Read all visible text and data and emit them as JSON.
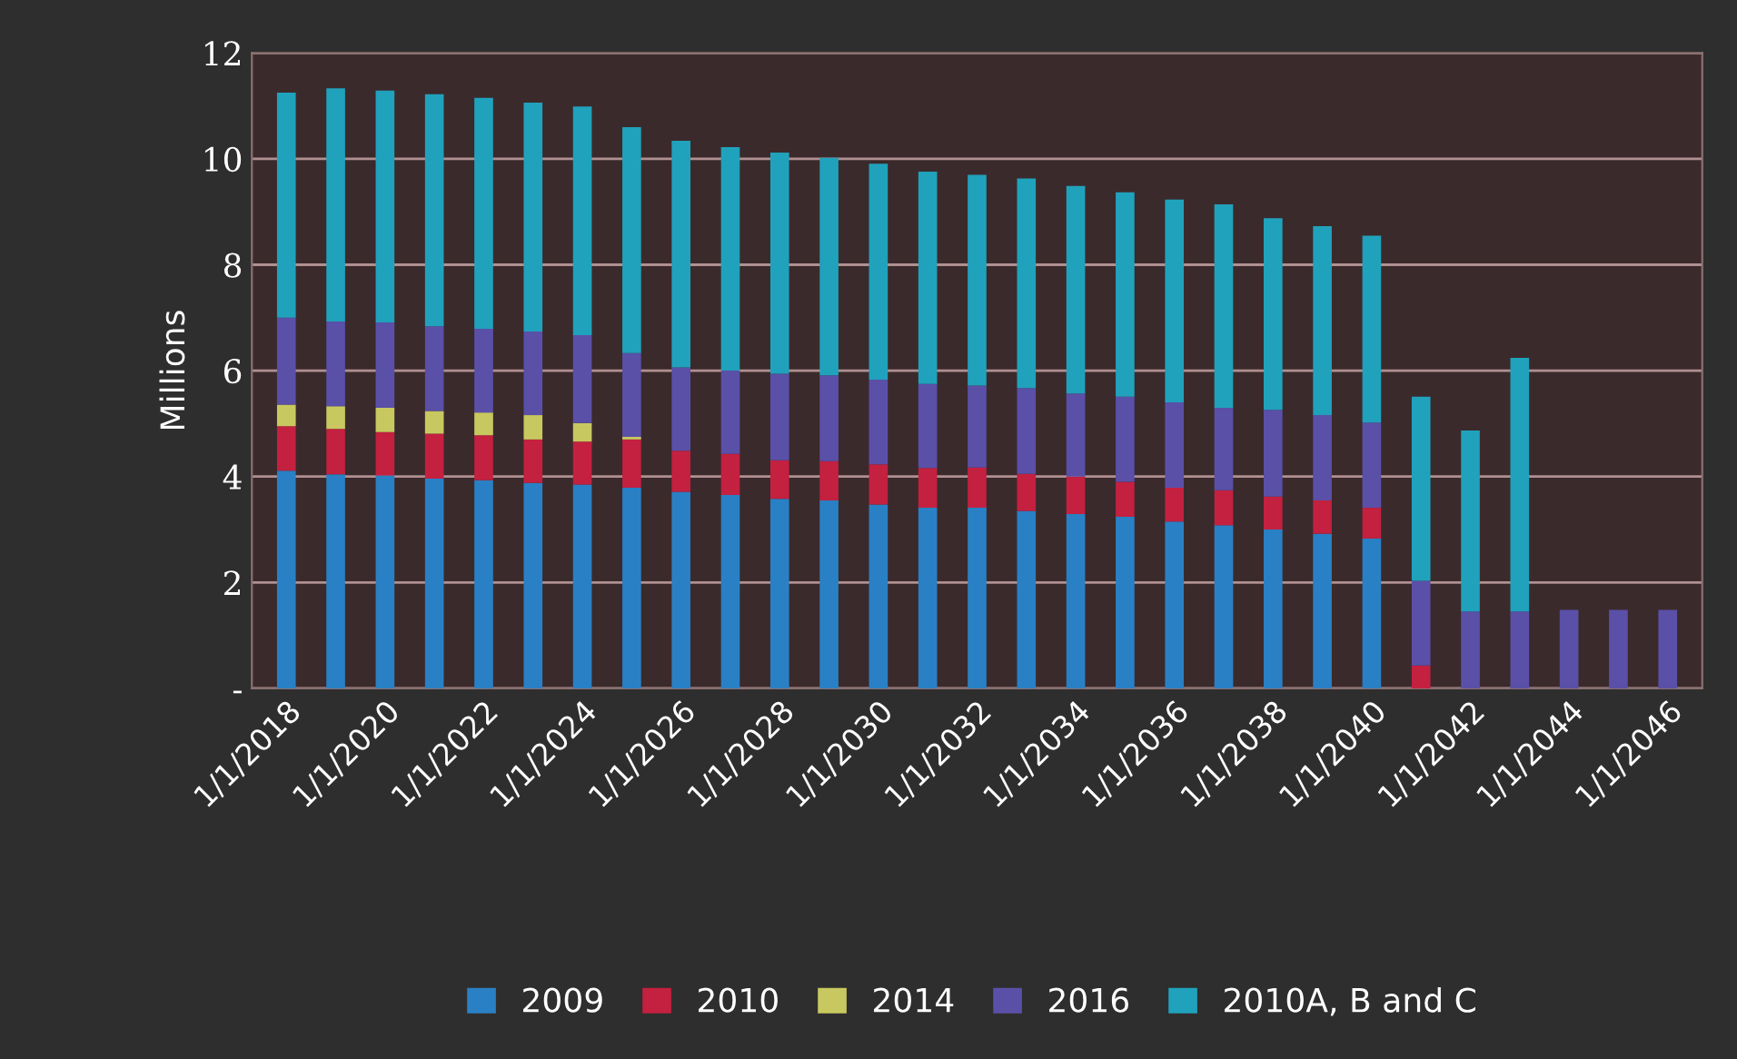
{
  "chart_data": {
    "type": "bar",
    "stacked": true,
    "ylabel": "Millions",
    "categories": [
      "1/1/2018",
      null,
      "1/1/2020",
      null,
      "1/1/2022",
      null,
      "1/1/2024",
      null,
      "1/1/2026",
      null,
      "1/1/2028",
      null,
      "1/1/2030",
      null,
      "1/1/2032",
      null,
      "1/1/2034",
      null,
      "1/1/2036",
      null,
      "1/1/2038",
      null,
      "1/1/2040",
      null,
      "1/1/2042",
      null,
      "1/1/2044",
      null,
      "1/1/2046"
    ],
    "series": [
      {
        "name": "2009",
        "color": "#2a80c4",
        "values": [
          4.11,
          4.04,
          4.02,
          3.96,
          3.93,
          3.88,
          3.85,
          3.79,
          3.71,
          3.65,
          3.58,
          3.55,
          3.47,
          3.41,
          3.41,
          3.35,
          3.29,
          3.24,
          3.15,
          3.08,
          3.0,
          2.92,
          2.83,
          null,
          null,
          null,
          null,
          null,
          null
        ]
      },
      {
        "name": "2010",
        "color": "#c42040",
        "values": [
          0.84,
          0.86,
          0.82,
          0.85,
          0.85,
          0.82,
          0.81,
          0.91,
          0.78,
          0.78,
          0.73,
          0.74,
          0.76,
          0.75,
          0.76,
          0.7,
          0.71,
          0.66,
          0.64,
          0.66,
          0.62,
          0.63,
          0.58,
          0.43,
          null,
          null,
          null,
          null,
          null
        ]
      },
      {
        "name": "2014",
        "color": "#c8c860",
        "values": [
          0.41,
          0.43,
          0.46,
          0.43,
          0.43,
          0.46,
          0.35,
          0.05,
          null,
          null,
          null,
          null,
          null,
          null,
          null,
          null,
          null,
          null,
          null,
          null,
          null,
          null,
          null,
          null,
          null,
          null,
          null,
          null,
          null
        ]
      },
      {
        "name": "2016",
        "color": "#5a50a8",
        "values": [
          1.64,
          1.6,
          1.61,
          1.6,
          1.58,
          1.58,
          1.66,
          1.58,
          1.57,
          1.57,
          1.63,
          1.62,
          1.6,
          1.59,
          1.55,
          1.62,
          1.57,
          1.61,
          1.61,
          1.56,
          1.64,
          1.61,
          1.61,
          1.6,
          1.45,
          1.45,
          1.48,
          1.48,
          1.48
        ]
      },
      {
        "name": "2010A, B and C",
        "color": "#20a2bc",
        "values": [
          4.25,
          4.4,
          4.38,
          4.38,
          4.36,
          4.32,
          4.32,
          4.27,
          4.28,
          4.22,
          4.18,
          4.11,
          4.08,
          4.01,
          3.98,
          3.96,
          3.92,
          3.86,
          3.83,
          3.84,
          3.62,
          3.57,
          3.53,
          3.48,
          3.42,
          4.79,
          null,
          null,
          null
        ]
      }
    ],
    "ylim": [
      0,
      12
    ],
    "yticks": [
      {
        "value": 0,
        "label": "-"
      },
      2,
      4,
      6,
      8,
      10,
      12
    ],
    "grid": "y",
    "legend": "bottom"
  }
}
